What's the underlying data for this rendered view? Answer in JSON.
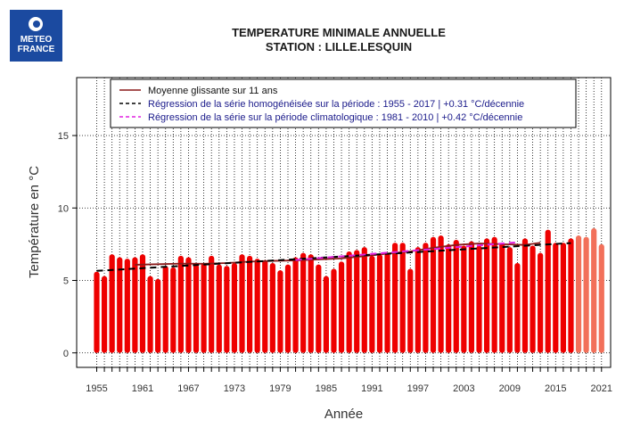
{
  "logo": {
    "line1": "METEO",
    "line2": "FRANCE",
    "color": "#1b4aa0"
  },
  "chart_data": {
    "type": "bar",
    "title": "TEMPERATURE MINIMALE ANNUELLE",
    "subtitle": "STATION : LILLE.LESQUIN",
    "xlabel": "Année",
    "ylabel": "Température en °C",
    "ylim": [
      -1,
      19
    ],
    "yticks": [
      0,
      5,
      10,
      15
    ],
    "xticks": [
      1955,
      1961,
      1967,
      1973,
      1979,
      1985,
      1991,
      1997,
      2003,
      2009,
      2015,
      2021
    ],
    "grid": true,
    "legend_position": "top",
    "years": [
      1955,
      1956,
      1957,
      1958,
      1959,
      1960,
      1961,
      1962,
      1963,
      1964,
      1965,
      1966,
      1967,
      1968,
      1969,
      1970,
      1971,
      1972,
      1973,
      1974,
      1975,
      1976,
      1977,
      1978,
      1979,
      1980,
      1981,
      1982,
      1983,
      1984,
      1985,
      1986,
      1987,
      1988,
      1989,
      1990,
      1991,
      1992,
      1993,
      1994,
      1995,
      1996,
      1997,
      1998,
      1999,
      2000,
      2001,
      2002,
      2003,
      2004,
      2005,
      2006,
      2007,
      2008,
      2009,
      2010,
      2011,
      2012,
      2013,
      2014,
      2015,
      2016,
      2017,
      2018,
      2019,
      2020,
      2021
    ],
    "values": [
      5.6,
      5.3,
      6.8,
      6.6,
      6.5,
      6.6,
      6.8,
      5.3,
      5.1,
      6.0,
      5.9,
      6.7,
      6.6,
      6.1,
      6.2,
      6.7,
      6.1,
      6.0,
      6.2,
      6.8,
      6.7,
      6.5,
      6.4,
      6.2,
      5.7,
      6.1,
      6.6,
      6.9,
      6.8,
      6.1,
      5.3,
      5.8,
      6.3,
      7.0,
      7.1,
      7.3,
      6.7,
      6.8,
      6.9,
      7.6,
      7.6,
      5.8,
      7.3,
      7.6,
      8.0,
      8.1,
      7.5,
      7.8,
      7.4,
      7.7,
      7.4,
      7.9,
      8.0,
      7.6,
      7.3,
      6.2,
      7.9,
      7.4,
      6.9,
      8.5,
      7.6,
      7.6,
      7.9,
      8.1,
      8.0,
      8.6,
      7.5
    ],
    "series": [
      {
        "name": "Moyenne glissante sur 11 ans",
        "color": "#8b1a1a",
        "style": "solid",
        "x": [
          1960,
          1963,
          1966,
          1969,
          1972,
          1975,
          1978,
          1981,
          1984,
          1987,
          1990,
          1993,
          1996,
          1999,
          2002,
          2005,
          2008,
          2011,
          2013
        ],
        "y": [
          6.08,
          6.12,
          6.16,
          6.15,
          6.2,
          6.3,
          6.35,
          6.38,
          6.45,
          6.52,
          6.68,
          6.85,
          7.0,
          7.25,
          7.45,
          7.55,
          7.5,
          7.45,
          7.6
        ]
      },
      {
        "name": "Régression de la série homogénéisée sur la période : 1955 - 2017 | +0.31 °C/décennie",
        "color": "#000000",
        "style": "dashed",
        "x": [
          1955,
          2017
        ],
        "y": [
          5.66,
          7.58
        ]
      },
      {
        "name": "Régression de la série sur la période climatologique : 1981 - 2010 | +0.42 °C/décennie",
        "color": "#e020e0",
        "style": "dashed",
        "x": [
          1981,
          2010
        ],
        "y": [
          6.41,
          7.63
        ]
      }
    ],
    "colors": {
      "homogenized": "#ee0000",
      "recent": "#f2705a"
    },
    "homogenized_until": 2017
  }
}
